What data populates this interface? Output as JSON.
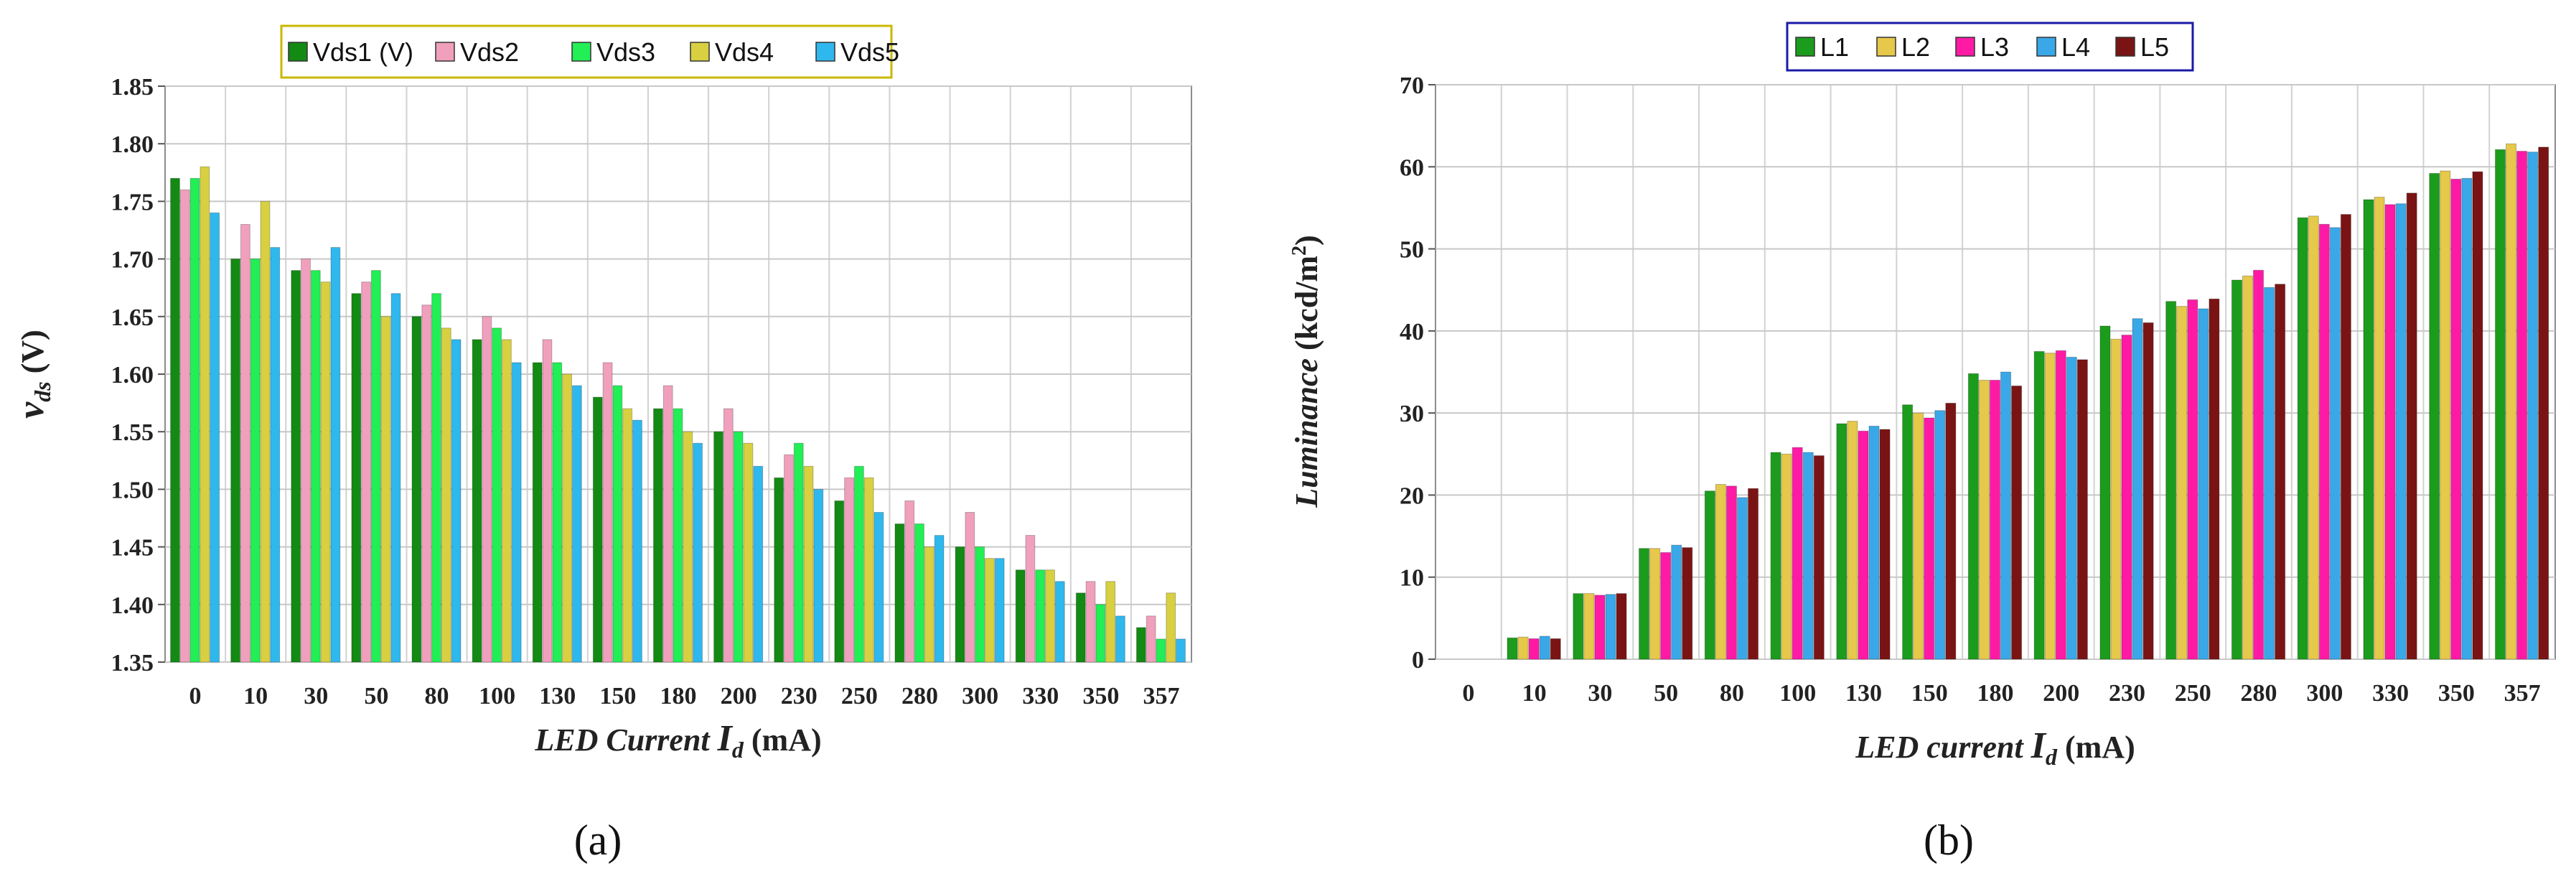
{
  "chart_data": [
    {
      "type": "bar",
      "caption": "(a)",
      "xlabel": {
        "text": "LED Current ",
        "var": "I",
        "sub": "d",
        "unit": " (mA)"
      },
      "ylabel": {
        "var": "v",
        "sub": "ds",
        "unit": "(V)"
      },
      "ylim": [
        1.35,
        1.85
      ],
      "yticks": [
        "1.35",
        "1.40",
        "1.45",
        "1.50",
        "1.55",
        "1.60",
        "1.65",
        "1.70",
        "1.75",
        "1.80",
        "1.85"
      ],
      "grid": true,
      "legend_position": "top-center",
      "categories": [
        "0",
        "10",
        "30",
        "50",
        "80",
        "100",
        "130",
        "150",
        "180",
        "200",
        "230",
        "250",
        "280",
        "300",
        "330",
        "350",
        "357"
      ],
      "series": [
        {
          "name": "Vds1 (V)",
          "color": "#138a13",
          "values": [
            1.77,
            1.7,
            1.69,
            1.67,
            1.65,
            1.63,
            1.61,
            1.58,
            1.57,
            1.55,
            1.51,
            1.49,
            1.47,
            1.45,
            1.43,
            1.41,
            1.38
          ]
        },
        {
          "name": "Vds2",
          "color": "#f0a0bc",
          "values": [
            1.76,
            1.73,
            1.7,
            1.68,
            1.66,
            1.65,
            1.63,
            1.61,
            1.59,
            1.57,
            1.53,
            1.51,
            1.49,
            1.48,
            1.46,
            1.42,
            1.39
          ]
        },
        {
          "name": "Vds3",
          "color": "#22ee55",
          "values": [
            1.77,
            1.7,
            1.69,
            1.69,
            1.67,
            1.64,
            1.61,
            1.59,
            1.57,
            1.55,
            1.54,
            1.52,
            1.47,
            1.45,
            1.43,
            1.4,
            1.37
          ]
        },
        {
          "name": "Vds4",
          "color": "#d8d040",
          "values": [
            1.78,
            1.75,
            1.68,
            1.65,
            1.64,
            1.63,
            1.6,
            1.57,
            1.55,
            1.54,
            1.52,
            1.51,
            1.45,
            1.44,
            1.43,
            1.42,
            1.41
          ]
        },
        {
          "name": "Vds5",
          "color": "#2eb8ee",
          "values": [
            1.74,
            1.71,
            1.71,
            1.67,
            1.63,
            1.61,
            1.59,
            1.56,
            1.54,
            1.52,
            1.5,
            1.48,
            1.46,
            1.44,
            1.42,
            1.39,
            1.37
          ]
        }
      ]
    },
    {
      "type": "bar",
      "caption": "(b)",
      "xlabel": {
        "text": "LED current ",
        "var": "I",
        "sub": "d",
        "unit": " (mA)"
      },
      "ylabel": {
        "text": "Luminance",
        "unit": " (kcd/m",
        "sup": "2",
        "unit_end": ")"
      },
      "ylim": [
        0,
        70
      ],
      "yticks": [
        "0",
        "10",
        "20",
        "30",
        "40",
        "50",
        "60",
        "70"
      ],
      "grid": true,
      "legend_position": "top-center",
      "categories": [
        "0",
        "10",
        "30",
        "50",
        "80",
        "100",
        "130",
        "150",
        "180",
        "200",
        "230",
        "250",
        "280",
        "300",
        "330",
        "350",
        "357"
      ],
      "series": [
        {
          "name": "L1",
          "color": "#1c9c1c",
          "values": [
            0,
            2.6,
            8.0,
            13.5,
            20.5,
            25.2,
            28.7,
            31.0,
            34.8,
            37.5,
            40.6,
            43.6,
            46.2,
            53.8,
            56.0,
            59.2,
            62.1
          ]
        },
        {
          "name": "L2",
          "color": "#e6c84a",
          "values": [
            0,
            2.7,
            8.0,
            13.5,
            21.3,
            25.0,
            29.0,
            30.0,
            34.0,
            37.3,
            39.0,
            43.0,
            46.7,
            54.0,
            56.3,
            59.5,
            62.8
          ]
        },
        {
          "name": "L3",
          "color": "#ff1aa6",
          "values": [
            0,
            2.5,
            7.8,
            13.0,
            21.1,
            25.8,
            27.8,
            29.4,
            34.0,
            37.6,
            39.5,
            43.8,
            47.4,
            53.0,
            55.4,
            58.5,
            61.9
          ]
        },
        {
          "name": "L4",
          "color": "#3aa8e8",
          "values": [
            0,
            2.8,
            7.9,
            13.9,
            19.7,
            25.2,
            28.4,
            30.3,
            35.0,
            36.8,
            41.5,
            42.7,
            45.3,
            52.6,
            55.5,
            58.6,
            61.8
          ]
        },
        {
          "name": "L5",
          "color": "#7a1414",
          "values": [
            0,
            2.5,
            8.0,
            13.6,
            20.8,
            24.8,
            28.0,
            31.2,
            33.3,
            36.5,
            41.0,
            43.9,
            45.7,
            54.2,
            56.8,
            59.4,
            62.4
          ]
        }
      ]
    }
  ]
}
